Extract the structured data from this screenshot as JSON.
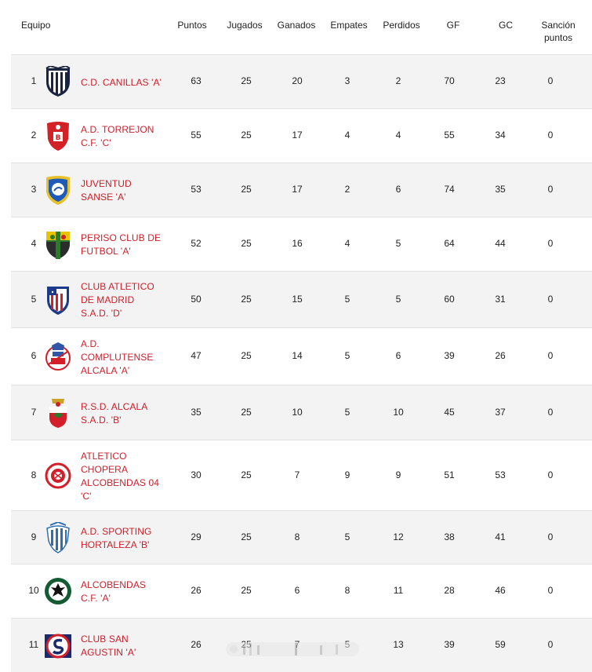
{
  "header": {
    "equipo": "Equipo",
    "puntos": "Puntos",
    "jugados": "Jugados",
    "ganados": "Ganados",
    "empates": "Empates",
    "perdidos": "Perdidos",
    "gf": "GF",
    "gc": "GC",
    "sancion_line1": "Sanción",
    "sancion_line2": "puntos"
  },
  "rows": [
    {
      "pos": "1",
      "name": [
        "C.D. CANILLAS 'A'"
      ],
      "crest": "canillas-crest",
      "puntos": "63",
      "jugados": "25",
      "ganados": "20",
      "empates": "3",
      "perdidos": "2",
      "gf": "70",
      "gc": "23",
      "sancion": "0"
    },
    {
      "pos": "2",
      "name": [
        "A.D. TORREJON",
        "C.F. 'C'"
      ],
      "crest": "torrejon-crest",
      "puntos": "55",
      "jugados": "25",
      "ganados": "17",
      "empates": "4",
      "perdidos": "4",
      "gf": "55",
      "gc": "34",
      "sancion": "0"
    },
    {
      "pos": "3",
      "name": [
        "JUVENTUD",
        "SANSE 'A'"
      ],
      "crest": "juventud-sanse-crest",
      "puntos": "53",
      "jugados": "25",
      "ganados": "17",
      "empates": "2",
      "perdidos": "6",
      "gf": "74",
      "gc": "35",
      "sancion": "0"
    },
    {
      "pos": "4",
      "name": [
        "PERISO CLUB DE",
        "FUTBOL 'A'"
      ],
      "crest": "periso-crest",
      "puntos": "52",
      "jugados": "25",
      "ganados": "16",
      "empates": "4",
      "perdidos": "5",
      "gf": "64",
      "gc": "44",
      "sancion": "0"
    },
    {
      "pos": "5",
      "name": [
        "CLUB ATLETICO",
        "DE MADRID",
        "S.A.D. 'D'"
      ],
      "crest": "atletico-madrid-crest",
      "puntos": "50",
      "jugados": "25",
      "ganados": "15",
      "empates": "5",
      "perdidos": "5",
      "gf": "60",
      "gc": "31",
      "sancion": "0"
    },
    {
      "pos": "6",
      "name": [
        "A.D.",
        "COMPLUTENSE",
        "ALCALA 'A'"
      ],
      "crest": "complutense-crest",
      "puntos": "47",
      "jugados": "25",
      "ganados": "14",
      "empates": "5",
      "perdidos": "6",
      "gf": "39",
      "gc": "26",
      "sancion": "0"
    },
    {
      "pos": "7",
      "name": [
        "R.S.D. ALCALA",
        "S.A.D. 'B'"
      ],
      "crest": "rsd-alcala-crest",
      "puntos": "35",
      "jugados": "25",
      "ganados": "10",
      "empates": "5",
      "perdidos": "10",
      "gf": "45",
      "gc": "37",
      "sancion": "0"
    },
    {
      "pos": "8",
      "name": [
        "ATLETICO",
        "CHOPERA",
        "ALCOBENDAS 04",
        "'C'"
      ],
      "crest": "chopera-crest",
      "puntos": "30",
      "jugados": "25",
      "ganados": "7",
      "empates": "9",
      "perdidos": "9",
      "gf": "51",
      "gc": "53",
      "sancion": "0"
    },
    {
      "pos": "9",
      "name": [
        "A.D. SPORTING",
        "HORTALEZA 'B'"
      ],
      "crest": "sporting-hortaleza-crest",
      "puntos": "29",
      "jugados": "25",
      "ganados": "8",
      "empates": "5",
      "perdidos": "12",
      "gf": "38",
      "gc": "41",
      "sancion": "0"
    },
    {
      "pos": "10",
      "name": [
        "ALCOBENDAS",
        "C.F. 'A'"
      ],
      "crest": "alcobendas-crest",
      "puntos": "26",
      "jugados": "25",
      "ganados": "6",
      "empates": "8",
      "perdidos": "11",
      "gf": "28",
      "gc": "46",
      "sancion": "0"
    },
    {
      "pos": "11",
      "name": [
        "CLUB SAN",
        "AGUSTIN 'A'"
      ],
      "crest": "san-agustin-crest",
      "puntos": "26",
      "jugados": "25",
      "ganados": "7",
      "empates": "5",
      "perdidos": "13",
      "gf": "39",
      "gc": "59",
      "sancion": "0"
    }
  ]
}
